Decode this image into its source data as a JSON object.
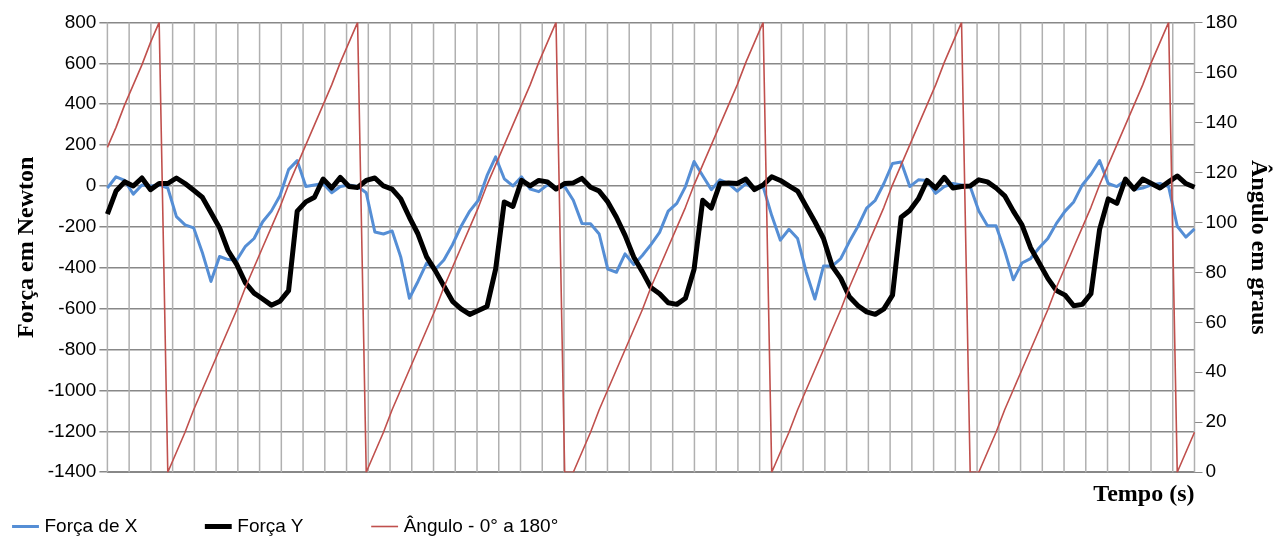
{
  "chart_data": {
    "type": "line",
    "xlabel": "Tempo (s)",
    "ylabel": "Força em Newton",
    "y2label": "Ângulo em graus",
    "categories": [
      null,
      null,
      null,
      null,
      null,
      null,
      null,
      null,
      null,
      null,
      null,
      null,
      null,
      null,
      null,
      null,
      null,
      null,
      null,
      null,
      null,
      null,
      null,
      null,
      null,
      null,
      null,
      null,
      null,
      null,
      null,
      null,
      null,
      null,
      null,
      null,
      null,
      null,
      null,
      null,
      null,
      null,
      null,
      null,
      null,
      null,
      null,
      null,
      null,
      null,
      null,
      null,
      null,
      null,
      null,
      null,
      null,
      null,
      null,
      null,
      null,
      null,
      null,
      null,
      null,
      null,
      null,
      null,
      null,
      null,
      null,
      null,
      null,
      null,
      null,
      null,
      null,
      null,
      null,
      null,
      null,
      null,
      null,
      null,
      null,
      null,
      null,
      null,
      null,
      null,
      null,
      null,
      null,
      null,
      null,
      null,
      null,
      null,
      null,
      null,
      null,
      null,
      null,
      null,
      null,
      null,
      null,
      null,
      null,
      null,
      null,
      null,
      null,
      null,
      null,
      null,
      null,
      null,
      null,
      null,
      null,
      null,
      null,
      null,
      null,
      null,
      null
    ],
    "ylim": [
      -1400,
      800
    ],
    "yticks": [
      -1400,
      -1200,
      -1000,
      -800,
      -600,
      -400,
      -200,
      0,
      200,
      400,
      600,
      800
    ],
    "y2lim": [
      0,
      180
    ],
    "y2ticks": [
      0,
      20,
      40,
      60,
      80,
      100,
      120,
      140,
      160,
      180
    ],
    "grid": true,
    "legend": "bottom",
    "marker": "none",
    "line_style": "solid",
    "series": [
      {
        "name": "Força de X",
        "color": "#558ed5",
        "values": [
          -10,
          45,
          27,
          -40,
          5,
          0,
          5,
          -10,
          -150,
          -190,
          -205,
          -325,
          -467,
          -345,
          -360,
          -362,
          -295,
          -257,
          -175,
          -123,
          -48,
          80,
          124,
          -3,
          5,
          12,
          -33,
          -3,
          5,
          -3,
          -33,
          -225,
          -235,
          -220,
          -347,
          -549,
          -467,
          -377,
          -407,
          -362,
          -287,
          -197,
          -123,
          -70,
          50,
          142,
          35,
          0,
          45,
          -15,
          -28,
          5,
          -10,
          -3,
          -70,
          -183,
          -185,
          -235,
          -407,
          -422,
          -332,
          -385,
          -340,
          -287,
          -227,
          -123,
          -85,
          -3,
          120,
          50,
          -18,
          30,
          12,
          -25,
          12,
          -18,
          -3,
          -145,
          -265,
          -212,
          -257,
          -422,
          -553,
          -392,
          -392,
          -355,
          -272,
          -197,
          -108,
          -70,
          12,
          110,
          117,
          -3,
          30,
          27,
          -36,
          -3,
          12,
          5,
          -3,
          -123,
          -195,
          -195,
          -317,
          -459,
          -377,
          -355,
          -302,
          -257,
          -183,
          -123,
          -78,
          5,
          57,
          124,
          12,
          -3,
          27,
          -18,
          -10,
          5,
          12,
          -3,
          -197,
          -250,
          -210
        ]
      },
      {
        "name": "Força Y",
        "color": "#000000",
        "values": [
          -138,
          -25,
          20,
          0,
          39,
          -18,
          12,
          12,
          39,
          12,
          -21,
          -55,
          -130,
          -205,
          -317,
          -385,
          -474,
          -524,
          -553,
          -583,
          -564,
          -512,
          -123,
          -78,
          -55,
          34,
          -10,
          42,
          -3,
          -7,
          27,
          39,
          0,
          -15,
          -63,
          -153,
          -235,
          -347,
          -414,
          -489,
          -564,
          -601,
          -628,
          -609,
          -589,
          -407,
          -78,
          -100,
          27,
          0,
          27,
          20,
          -15,
          12,
          15,
          37,
          -6,
          -25,
          -78,
          -153,
          -242,
          -347,
          -419,
          -497,
          -527,
          -571,
          -579,
          -549,
          -407,
          -70,
          -108,
          12,
          15,
          12,
          34,
          -18,
          5,
          45,
          27,
          0,
          -25,
          -100,
          -175,
          -257,
          -392,
          -452,
          -542,
          -586,
          -616,
          -628,
          -601,
          -534,
          -153,
          -120,
          -63,
          27,
          -10,
          42,
          -10,
          -3,
          0,
          30,
          20,
          -10,
          -48,
          -123,
          -190,
          -302,
          -377,
          -452,
          -512,
          -534,
          -586,
          -579,
          -527,
          -212,
          -63,
          -85,
          34,
          -15,
          34,
          12,
          -10,
          20,
          49,
          12,
          -6
        ]
      },
      {
        "name": "Ângulo - 0° a 180°",
        "color": "#c0504d",
        "axis": "y2",
        "values": [
          130,
          138,
          147,
          155,
          163,
          172,
          180,
          0,
          8,
          16,
          25,
          33,
          41,
          49,
          57,
          65,
          74,
          82,
          90,
          98,
          106,
          115,
          123,
          131,
          139,
          147,
          155,
          164,
          172,
          180,
          0,
          8,
          16,
          25,
          33,
          41,
          49,
          57,
          65,
          74,
          82,
          90,
          98,
          106,
          115,
          123,
          131,
          139,
          147,
          155,
          164,
          172,
          180,
          0,
          0,
          8,
          16,
          25,
          33,
          41,
          49,
          57,
          65,
          74,
          82,
          90,
          98,
          106,
          115,
          123,
          131,
          139,
          147,
          155,
          164,
          172,
          180,
          0,
          8,
          16,
          25,
          33,
          41,
          49,
          57,
          65,
          74,
          82,
          90,
          98,
          106,
          115,
          123,
          131,
          139,
          147,
          155,
          164,
          172,
          180,
          0,
          0,
          8,
          16,
          25,
          33,
          41,
          49,
          57,
          65,
          74,
          82,
          90,
          98,
          106,
          115,
          123,
          131,
          139,
          147,
          155,
          164,
          172,
          180,
          0,
          8,
          16
        ]
      }
    ]
  }
}
